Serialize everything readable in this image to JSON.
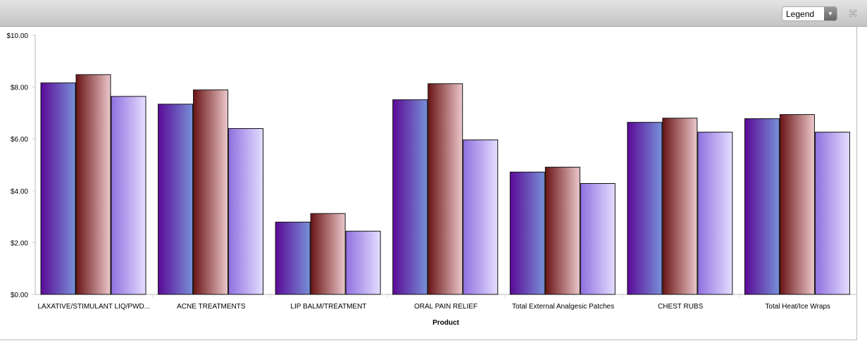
{
  "toolbar": {
    "legend_label": "Legend",
    "legend_icon": "chevron-down-icon",
    "expand_icon": "collapse-arrows-icon"
  },
  "chart_data": {
    "type": "bar",
    "xlabel": "Product",
    "ylabel": "",
    "ylim": [
      0,
      10
    ],
    "yticks": [
      "$0.00",
      "$2.00",
      "$4.00",
      "$6.00",
      "$8.00",
      "$10.00"
    ],
    "grid": false,
    "categories": [
      "LAXATIVE/STIMULANT LIQ/PWD...",
      "ACNE TREATMENTS",
      "LIP BALM/TREATMENT",
      "ORAL PAIN RELIEF",
      "Total External Analgesic Patches",
      "CHEST RUBS",
      "Total Heat/Ice Wraps"
    ],
    "series": [
      {
        "values": [
          8.16,
          7.34,
          2.79,
          7.51,
          4.72,
          6.64,
          6.78
        ],
        "colors": [
          "#5a0a96",
          "#7890d8"
        ]
      },
      {
        "values": [
          8.48,
          7.89,
          3.12,
          8.13,
          4.91,
          6.8,
          6.94
        ],
        "colors": [
          "#6a1414",
          "#ecc8cc"
        ]
      },
      {
        "values": [
          7.64,
          6.4,
          2.44,
          5.96,
          4.28,
          6.26,
          6.26
        ],
        "colors": [
          "#9070e0",
          "#e4deff"
        ]
      }
    ]
  }
}
